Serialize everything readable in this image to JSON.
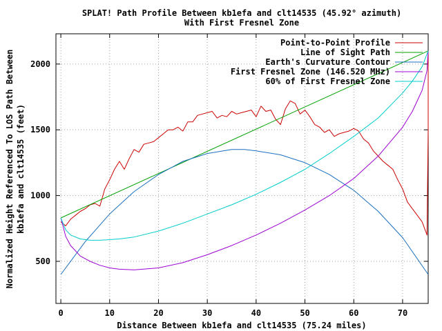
{
  "chart_data": {
    "type": "line",
    "title_lines": [
      "SPLAT! Path Profile Between kb1efa and clt14535 (45.92° azimuth)",
      "With First Fresnel Zone"
    ],
    "xlabel": "Distance Between kb1efa and clt14535 (75.24 miles)",
    "ylabel_lines": [
      "Normalized Height Referenced To LOS Path Between",
      "kb1efa and clt14535 (feet)"
    ],
    "xlim": [
      -1,
      75.24
    ],
    "ylim": [
      180,
      2230
    ],
    "x_ticks": [
      0,
      10,
      20,
      30,
      40,
      50,
      60,
      70
    ],
    "y_ticks": [
      500,
      1000,
      1500,
      2000
    ],
    "grid": true,
    "legend_position": "top-right",
    "series": [
      {
        "name": "Point-to-Point Profile",
        "color": "#cc0000",
        "x": [
          0,
          1,
          2,
          3,
          4,
          5,
          6,
          7,
          8,
          9,
          10,
          11,
          12,
          13,
          14,
          15,
          16,
          17,
          18,
          19,
          20,
          21,
          22,
          23,
          24,
          25,
          26,
          27,
          28,
          29,
          30,
          31,
          32,
          33,
          34,
          35,
          36,
          37,
          38,
          39,
          40,
          41,
          42,
          43,
          44,
          45,
          46,
          47,
          48,
          49,
          50,
          51,
          52,
          53,
          54,
          55,
          56,
          57,
          58,
          59,
          60,
          61,
          62,
          63,
          64,
          65,
          66,
          67,
          68,
          69,
          70,
          71,
          72,
          73,
          74,
          74.4,
          74.8,
          75,
          75.24,
          75.24
        ],
        "y": [
          800,
          770,
          820,
          850,
          880,
          900,
          930,
          940,
          920,
          1050,
          1120,
          1200,
          1260,
          1200,
          1280,
          1350,
          1330,
          1390,
          1400,
          1410,
          1440,
          1470,
          1500,
          1500,
          1520,
          1490,
          1560,
          1560,
          1610,
          1620,
          1630,
          1640,
          1590,
          1610,
          1600,
          1640,
          1620,
          1630,
          1640,
          1650,
          1600,
          1680,
          1640,
          1650,
          1580,
          1540,
          1660,
          1720,
          1700,
          1620,
          1650,
          1600,
          1540,
          1520,
          1480,
          1500,
          1450,
          1470,
          1480,
          1490,
          1510,
          1490,
          1430,
          1400,
          1340,
          1300,
          1260,
          1230,
          1200,
          1120,
          1050,
          950,
          900,
          850,
          800,
          760,
          720,
          700,
          1500,
          2100
        ]
      },
      {
        "name": "Line of Sight Path",
        "color": "#00a000",
        "x": [
          0,
          75.24
        ],
        "y": [
          830,
          2100
        ]
      },
      {
        "name": "Earth's Curvature Contour",
        "color": "#1a6fbf",
        "x": [
          0,
          5,
          10,
          15,
          20,
          25,
          30,
          35,
          37.6,
          40,
          45,
          50,
          55,
          60,
          65,
          70,
          75.24
        ],
        "y": [
          400,
          650,
          860,
          1030,
          1160,
          1260,
          1320,
          1350,
          1350,
          1340,
          1310,
          1250,
          1160,
          1040,
          880,
          680,
          400
        ]
      },
      {
        "name": "First Fresnel Zone (146.520 MHz)",
        "color": "#9b00d3",
        "x": [
          0,
          1,
          2,
          4,
          6,
          8,
          10,
          12,
          15,
          20,
          25,
          30,
          35,
          40,
          45,
          50,
          55,
          60,
          65,
          70,
          72,
          74,
          75,
          75.24
        ],
        "y": [
          830,
          690,
          620,
          540,
          500,
          470,
          450,
          440,
          435,
          450,
          490,
          550,
          620,
          700,
          790,
          890,
          1000,
          1130,
          1300,
          1520,
          1640,
          1800,
          1950,
          2100
        ]
      },
      {
        "name": "60% of First Fresnel Zone",
        "color": "#00cccc",
        "x": [
          0,
          1,
          2,
          4,
          6,
          8,
          10,
          12,
          15,
          20,
          25,
          30,
          35,
          40,
          45,
          50,
          55,
          60,
          65,
          70,
          72,
          74,
          75.24
        ],
        "y": [
          830,
          740,
          700,
          670,
          660,
          660,
          665,
          670,
          685,
          730,
          790,
          860,
          930,
          1010,
          1100,
          1200,
          1320,
          1450,
          1590,
          1780,
          1870,
          1980,
          2100
        ]
      }
    ]
  }
}
